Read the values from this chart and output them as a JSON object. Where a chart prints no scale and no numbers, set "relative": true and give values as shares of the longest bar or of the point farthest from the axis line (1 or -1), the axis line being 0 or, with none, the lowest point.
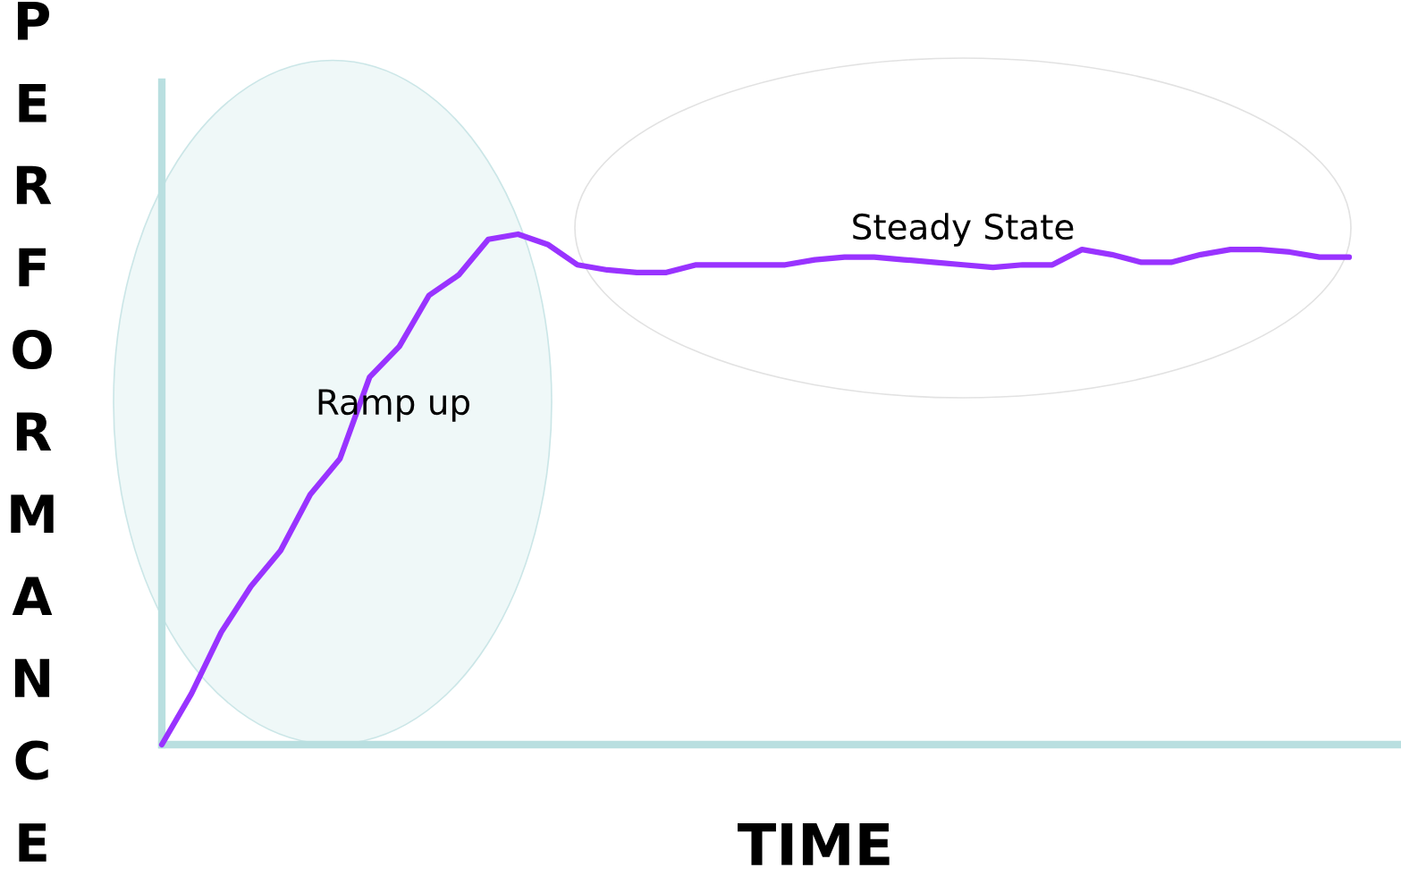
{
  "chart_data": {
    "type": "line",
    "relative": true,
    "xlabel": "TIME",
    "ylabel": "PERFORMANCE",
    "annotations": [
      "Ramp up",
      "Steady State"
    ],
    "categories": [
      null,
      null,
      null,
      null,
      null,
      null,
      null,
      null,
      null,
      null,
      null,
      null,
      null,
      null,
      null,
      null,
      null,
      null,
      null,
      null,
      null,
      null,
      null,
      null,
      null,
      null,
      null,
      null,
      null,
      null,
      null,
      null,
      null,
      null,
      null,
      null,
      null,
      null,
      null,
      null,
      null
    ],
    "series": [
      {
        "color": "#9933ff",
        "values": [
          0,
          0.1,
          0.22,
          0.31,
          0.38,
          0.49,
          0.56,
          0.72,
          0.78,
          0.88,
          0.92,
          0.99,
          1,
          0.98,
          0.94,
          0.93,
          0.925,
          0.925,
          0.94,
          0.94,
          0.94,
          0.94,
          0.95,
          0.955,
          0.955,
          0.95,
          0.945,
          0.94,
          0.935,
          0.94,
          0.94,
          0.97,
          0.96,
          0.945,
          0.945,
          0.96,
          0.97,
          0.97,
          0.965,
          0.955,
          0.955
        ]
      }
    ],
    "grid": false,
    "legend": false,
    "marker": "none",
    "line_style": "solid"
  }
}
